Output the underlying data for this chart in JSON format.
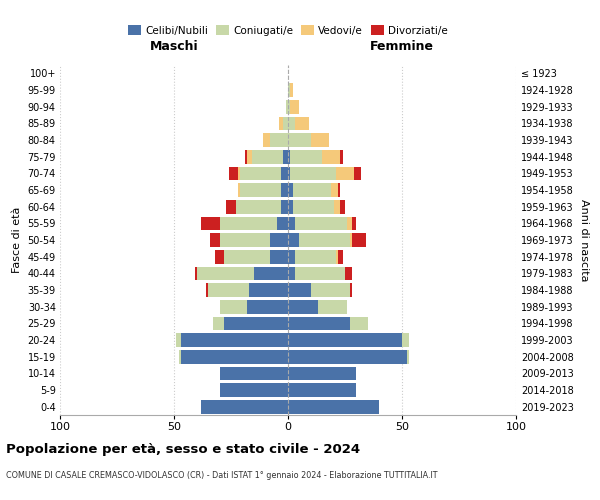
{
  "age_groups": [
    "0-4",
    "5-9",
    "10-14",
    "15-19",
    "20-24",
    "25-29",
    "30-34",
    "35-39",
    "40-44",
    "45-49",
    "50-54",
    "55-59",
    "60-64",
    "65-69",
    "70-74",
    "75-79",
    "80-84",
    "85-89",
    "90-94",
    "95-99",
    "100+"
  ],
  "birth_years": [
    "2019-2023",
    "2014-2018",
    "2009-2013",
    "2004-2008",
    "1999-2003",
    "1994-1998",
    "1989-1993",
    "1984-1988",
    "1979-1983",
    "1974-1978",
    "1969-1973",
    "1964-1968",
    "1959-1963",
    "1954-1958",
    "1949-1953",
    "1944-1948",
    "1939-1943",
    "1934-1938",
    "1929-1933",
    "1924-1928",
    "≤ 1923"
  ],
  "colors": {
    "celibi": "#4a72a8",
    "coniugati": "#c8d8a8",
    "vedovi": "#f5c97a",
    "divorziati": "#cc2020"
  },
  "maschi": {
    "celibi": [
      38,
      30,
      30,
      47,
      47,
      28,
      18,
      17,
      15,
      8,
      8,
      5,
      3,
      3,
      3,
      2,
      0,
      0,
      0,
      0,
      0
    ],
    "coniugati": [
      0,
      0,
      0,
      1,
      2,
      5,
      12,
      18,
      25,
      20,
      22,
      25,
      20,
      18,
      18,
      14,
      8,
      2,
      1,
      0,
      0
    ],
    "vedovi": [
      0,
      0,
      0,
      0,
      0,
      0,
      0,
      0,
      0,
      0,
      0,
      0,
      0,
      1,
      1,
      2,
      3,
      2,
      0,
      0,
      0
    ],
    "divorziati": [
      0,
      0,
      0,
      0,
      0,
      0,
      0,
      1,
      1,
      4,
      4,
      8,
      4,
      0,
      4,
      1,
      0,
      0,
      0,
      0,
      0
    ]
  },
  "femmine": {
    "nubili": [
      40,
      30,
      30,
      52,
      50,
      27,
      13,
      10,
      3,
      3,
      5,
      3,
      2,
      2,
      1,
      1,
      0,
      0,
      0,
      0,
      0
    ],
    "coniugate": [
      0,
      0,
      0,
      1,
      3,
      8,
      13,
      17,
      22,
      18,
      22,
      23,
      18,
      17,
      20,
      14,
      10,
      3,
      1,
      1,
      0
    ],
    "vedove": [
      0,
      0,
      0,
      0,
      0,
      0,
      0,
      0,
      0,
      1,
      1,
      2,
      3,
      3,
      8,
      8,
      8,
      6,
      4,
      1,
      0
    ],
    "divorziate": [
      0,
      0,
      0,
      0,
      0,
      0,
      0,
      1,
      3,
      2,
      6,
      2,
      2,
      1,
      3,
      1,
      0,
      0,
      0,
      0,
      0
    ]
  },
  "title": "Popolazione per età, sesso e stato civile - 2024",
  "subtitle": "COMUNE DI CASALE CREMASCO-VIDOLASCO (CR) - Dati ISTAT 1° gennaio 2024 - Elaborazione TUTTITALIA.IT",
  "ylabel_left": "Fasce di età",
  "ylabel_right": "Anni di nascita",
  "xlabel_left": "Maschi",
  "xlabel_right": "Femmine",
  "xlim": 100,
  "background_color": "#ffffff",
  "grid_color": "#cccccc"
}
